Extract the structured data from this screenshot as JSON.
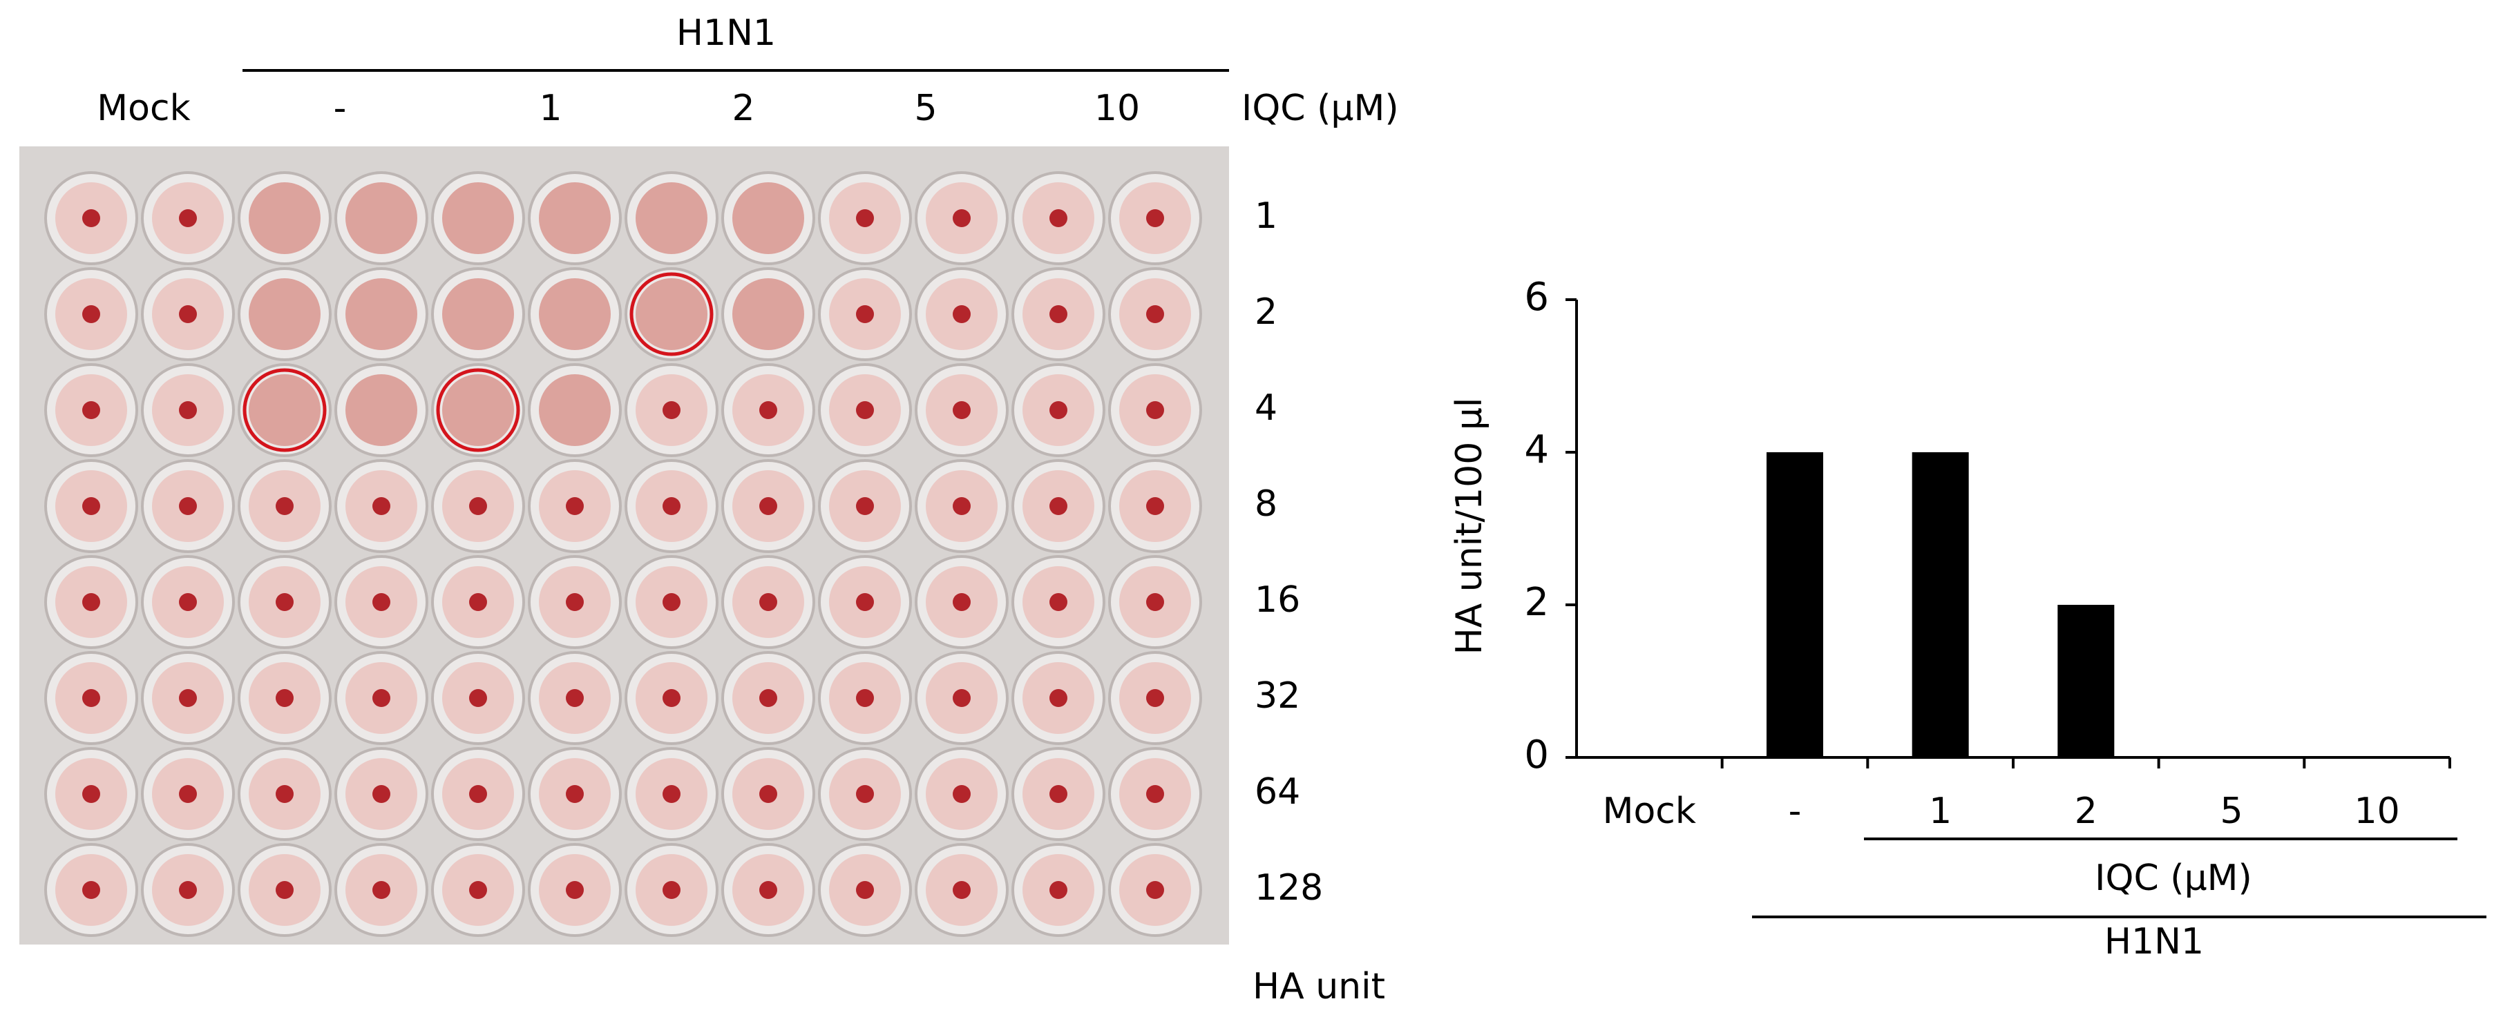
{
  "plate": {
    "top_label": "H1N1",
    "column_labels": [
      "Mock",
      "-",
      "1",
      "2",
      "5",
      "10"
    ],
    "column_unit": "IQC (μM)",
    "row_labels": [
      "1",
      "2",
      "4",
      "8",
      "16",
      "32",
      "64",
      "128"
    ],
    "row_unit": "HA unit"
  },
  "chart_data": {
    "type": "bar",
    "y_label": "HA unit/100 μl",
    "categories": [
      "Mock",
      "-",
      "1",
      "2",
      "5",
      "10"
    ],
    "values": [
      0,
      4,
      4,
      2,
      0,
      0
    ],
    "color": "#000000",
    "ylim": [
      0,
      6
    ],
    "yticks": [
      0,
      2,
      4,
      6
    ],
    "grid": false,
    "annotations": [
      "IQC (μM)",
      "H1N1"
    ]
  }
}
